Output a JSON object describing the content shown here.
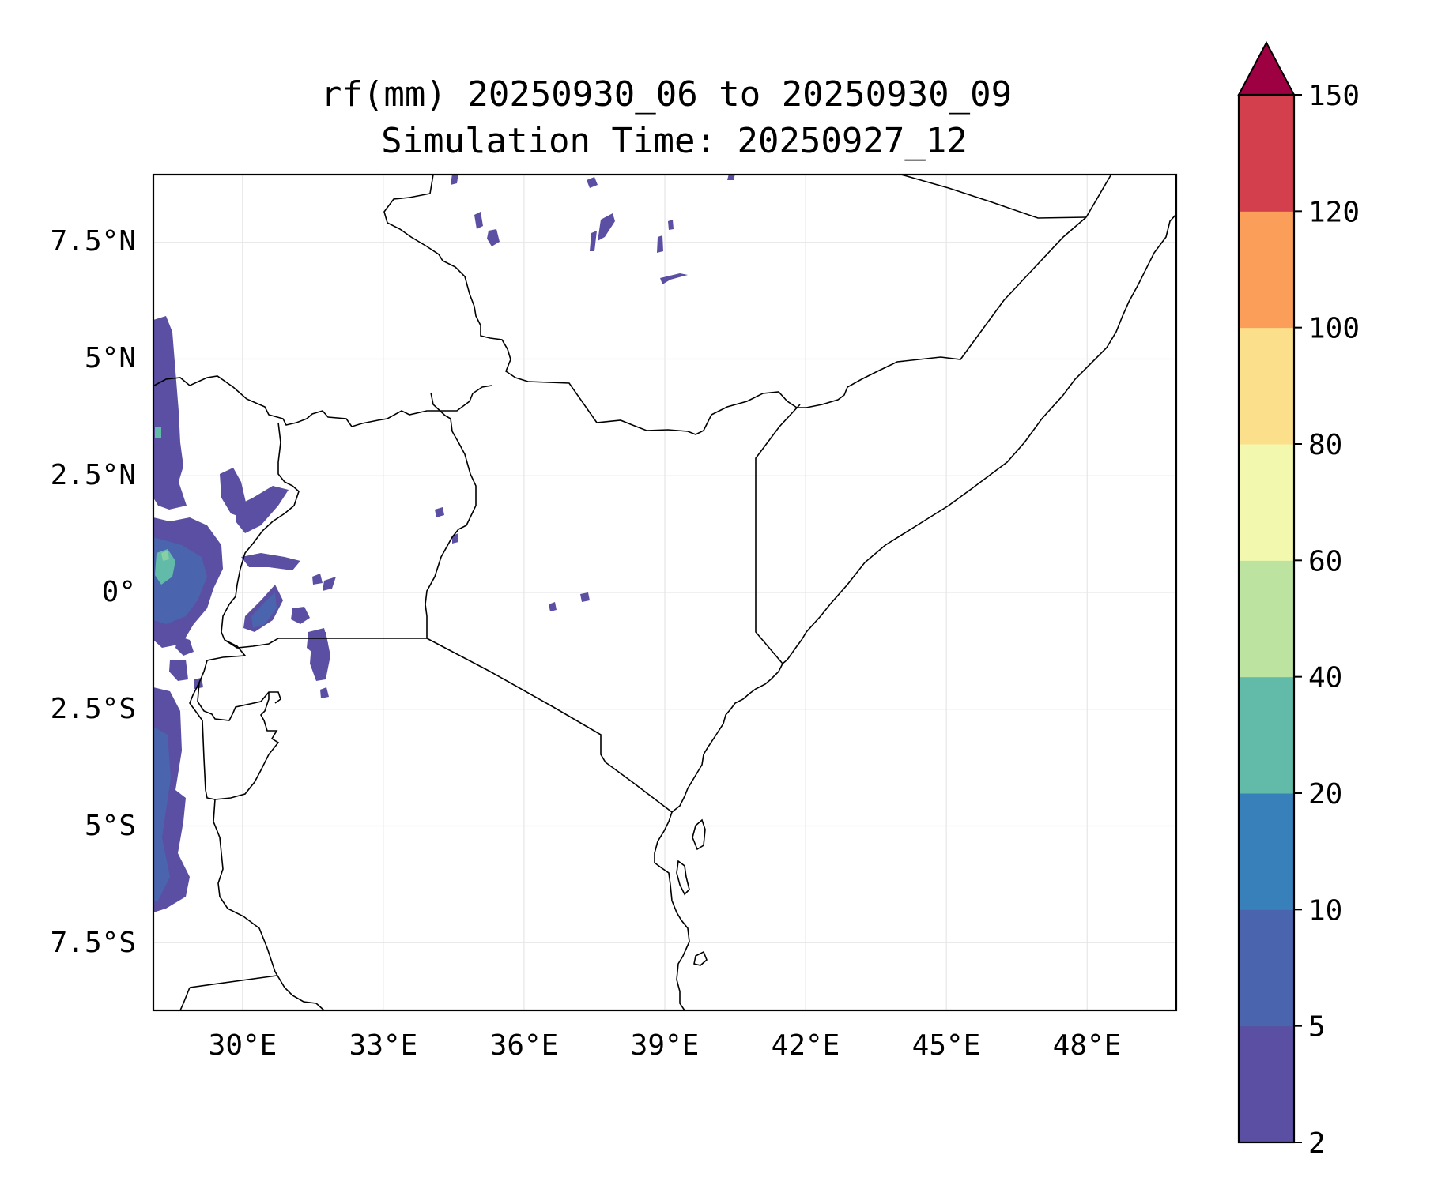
{
  "title": {
    "line1": "rf(mm) 20250930_06 to 20250930_09",
    "line2": "Simulation Time: 20250927_12"
  },
  "map": {
    "lon_range": [
      28.1,
      49.9
    ],
    "lat_range": [
      -8.95,
      8.95
    ],
    "x_ticks": [
      {
        "value": 30,
        "label": "30°E"
      },
      {
        "value": 33,
        "label": "33°E"
      },
      {
        "value": 36,
        "label": "36°E"
      },
      {
        "value": 39,
        "label": "39°E"
      },
      {
        "value": 42,
        "label": "42°E"
      },
      {
        "value": 45,
        "label": "45°E"
      },
      {
        "value": 48,
        "label": "48°E"
      }
    ],
    "y_ticks": [
      {
        "value": 7.5,
        "label": "7.5°N"
      },
      {
        "value": 5,
        "label": "5°N"
      },
      {
        "value": 2.5,
        "label": "2.5°N"
      },
      {
        "value": 0,
        "label": "0°"
      },
      {
        "value": -2.5,
        "label": "2.5°S"
      },
      {
        "value": -5,
        "label": "5°S"
      },
      {
        "value": -7.5,
        "label": "7.5°S"
      }
    ],
    "grid": true
  },
  "colorbar": {
    "levels": [
      "2",
      "5",
      "10",
      "20",
      "40",
      "60",
      "80",
      "100",
      "120",
      "150"
    ],
    "colors": [
      "#5a4fa2",
      "#4a64ae",
      "#3880ba",
      "#62bba9",
      "#bce4a0",
      "#f2f9ae",
      "#fcdf8b",
      "#fa9e5a",
      "#d43f4d"
    ],
    "extend_color": "#9e0142"
  },
  "colors": {
    "dark_blue": "#5a4fa2",
    "blue": "#4a64ae",
    "teal": "#62bba9",
    "light_green": "#88cfa4"
  }
}
